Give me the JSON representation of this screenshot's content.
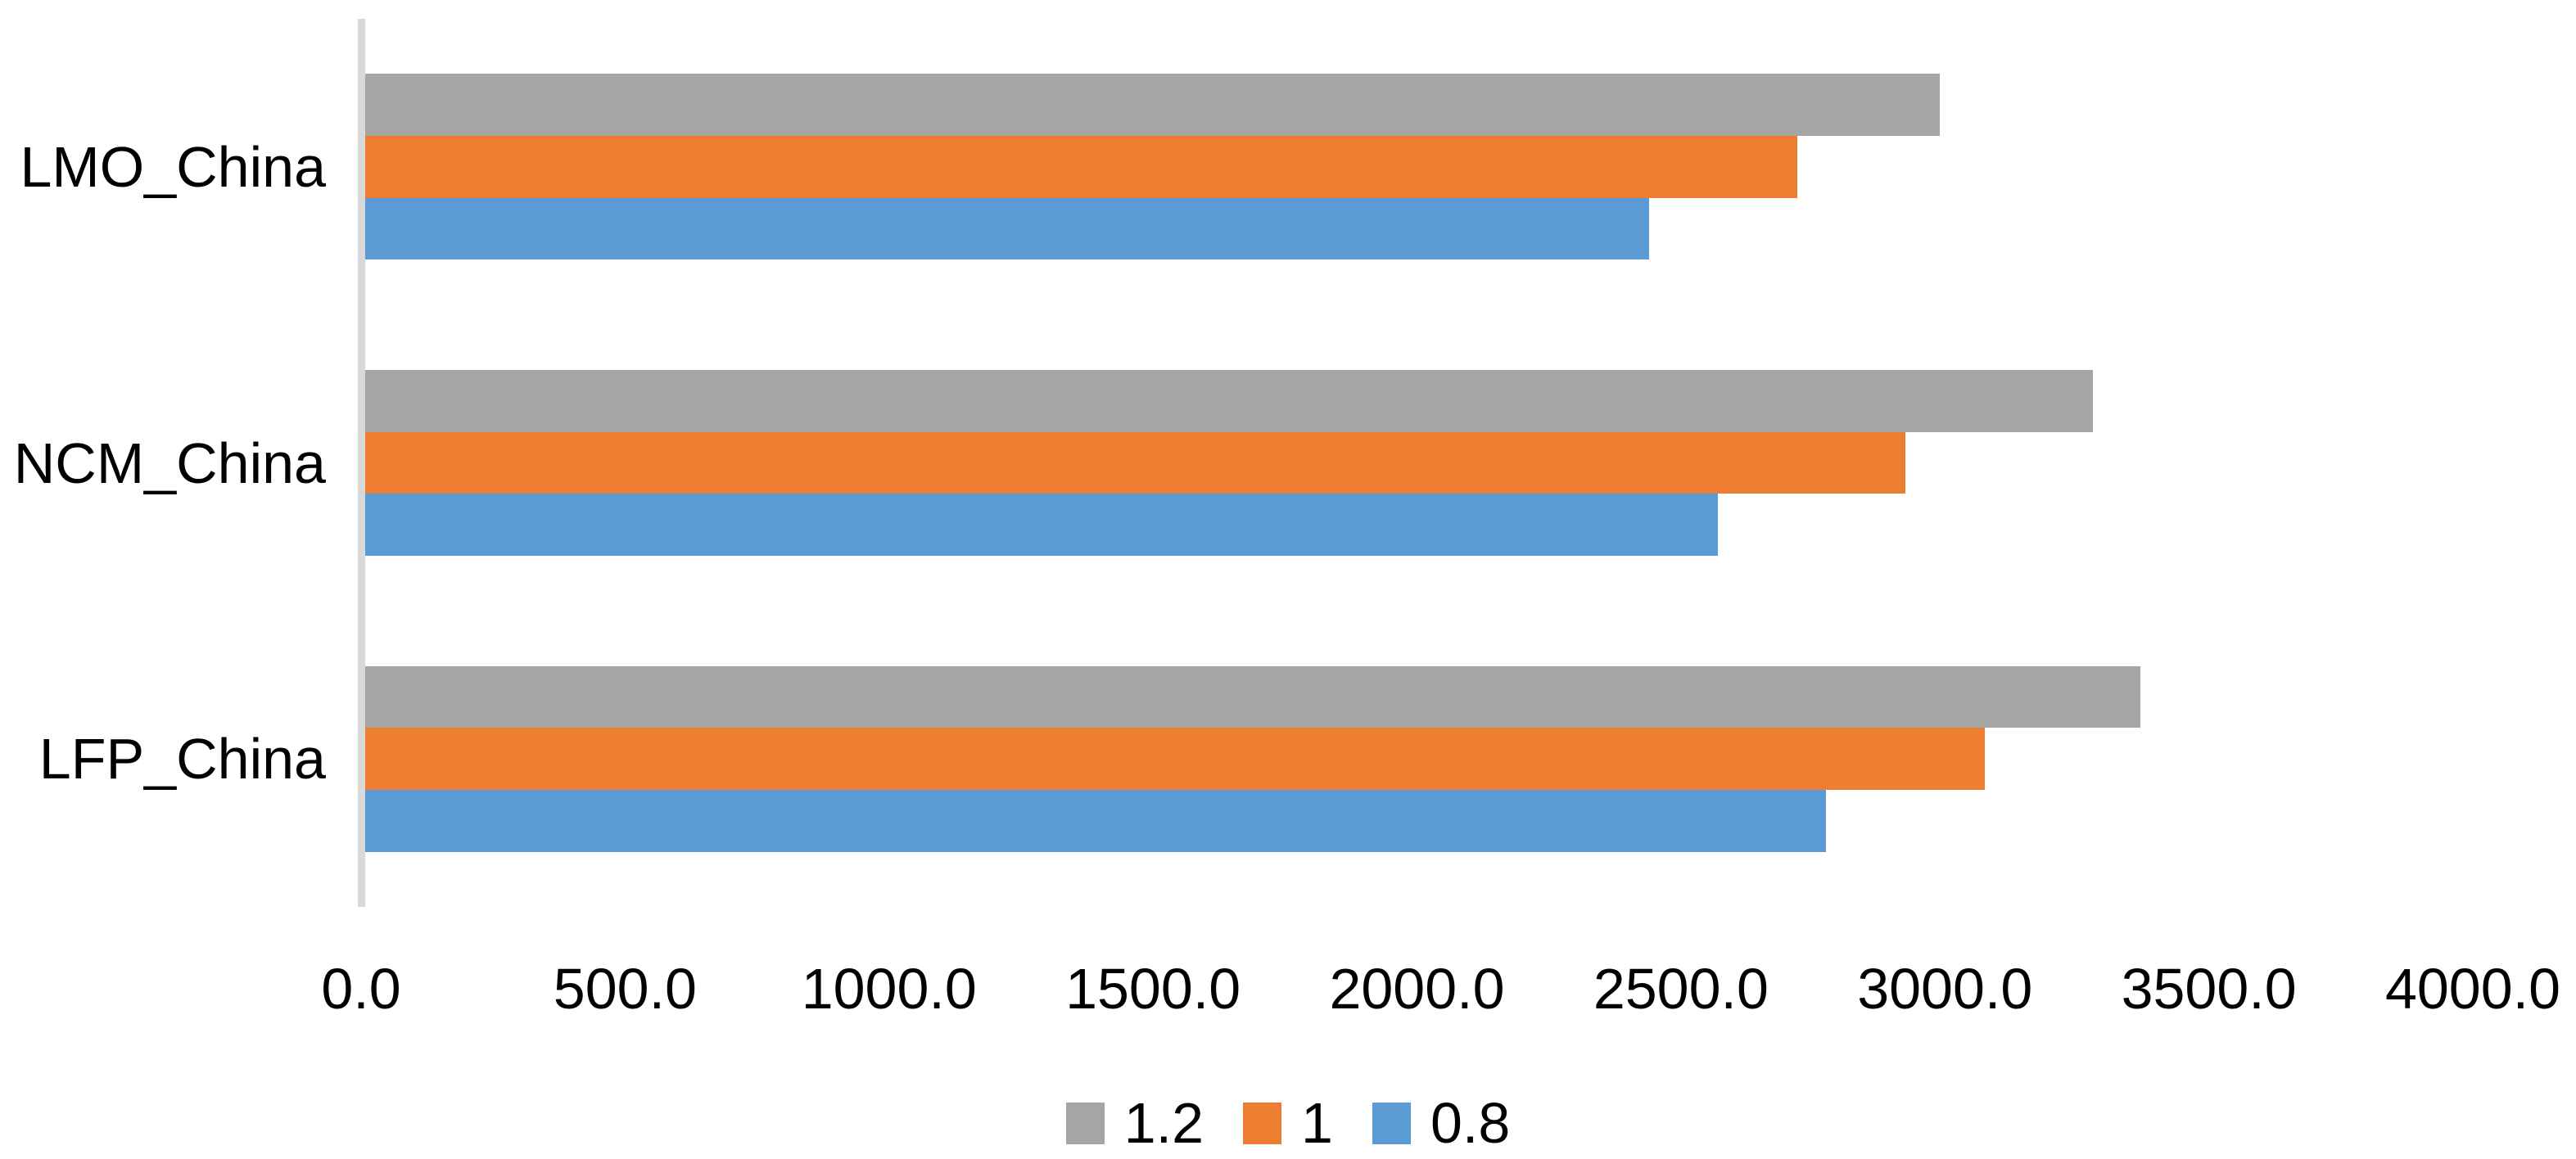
{
  "chart_data": {
    "type": "bar",
    "orientation": "horizontal",
    "title": "",
    "xlabel": "",
    "ylabel": "",
    "categories": [
      "LMO_China",
      "NCM_China",
      "LFP_China"
    ],
    "series": [
      {
        "name": "1.2",
        "color": "#a5a5a5",
        "values": [
          2990,
          3280,
          3370
        ]
      },
      {
        "name": "1",
        "color": "#ed7d31",
        "values": [
          2720,
          2925,
          3075
        ]
      },
      {
        "name": "0.8",
        "color": "#5b9bd5",
        "values": [
          2440,
          2570,
          2775
        ]
      }
    ],
    "xlim": [
      0,
      4000
    ],
    "x_ticks": [
      "0.0",
      "500.0",
      "1000.0",
      "1500.0",
      "2000.0",
      "2500.0",
      "3000.0",
      "3500.0",
      "4000.0"
    ],
    "x_tick_values": [
      0,
      500,
      1000,
      1500,
      2000,
      2500,
      3000,
      3500,
      4000
    ],
    "grid": false,
    "legend": {
      "position": "bottom",
      "entries": [
        "1.2",
        "1",
        "0.8"
      ]
    },
    "colors": {
      "axis_line": "#d9d9d9",
      "text": "#000000",
      "background": "#ffffff"
    }
  }
}
